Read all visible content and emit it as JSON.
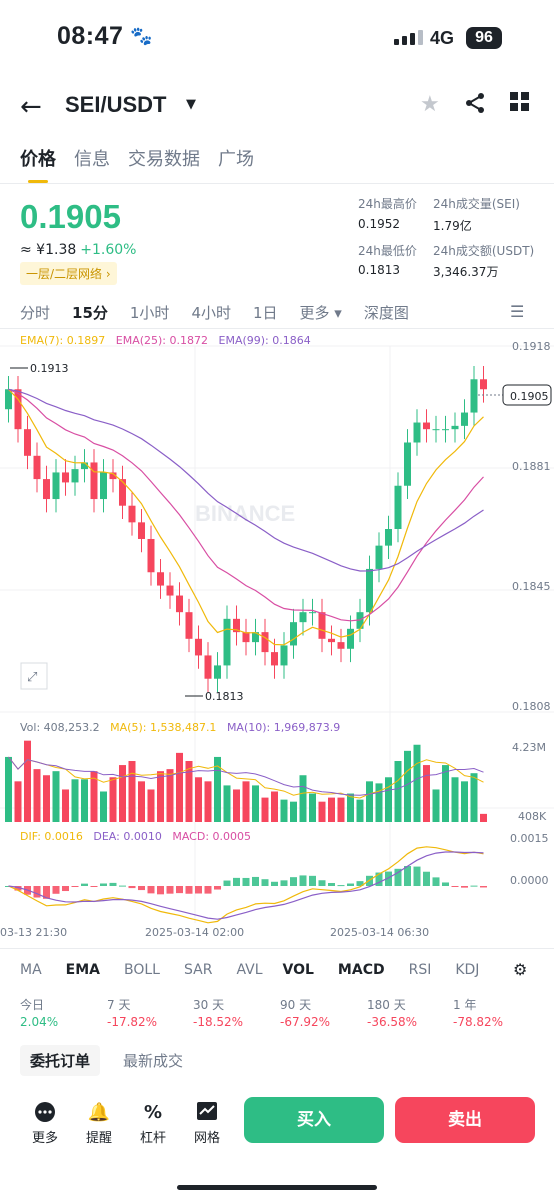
{
  "status_bar": {
    "time": "08:47",
    "network": "4G",
    "battery": "96"
  },
  "header": {
    "pair": "SEI/USDT"
  },
  "tabs": [
    "价格",
    "信息",
    "交易数据",
    "广场"
  ],
  "ticker": {
    "price": "0.1905",
    "fiat": "≈ ¥1.38",
    "change": "+1.60%",
    "grid_badge": "一层/二层网络 ›",
    "high_label": "24h最高价",
    "high": "0.1952",
    "vol_label": "24h成交量(SEI)",
    "vol": "1.79亿",
    "low_label": "24h最低价",
    "low": "0.1813",
    "amt_label": "24h成交额(USDT)",
    "amt": "3,346.37万"
  },
  "intervals": [
    "分时",
    "15分",
    "1小时",
    "4小时",
    "1日",
    "更多 ▾",
    "深度图"
  ],
  "chart_overlay": {
    "ema7": "EMA(7): 0.1897",
    "ema25": "EMA(25): 0.1872",
    "ema99": "EMA(99): 0.1864",
    "axis": [
      "0.1918",
      "0.1881",
      "0.1845",
      "0.1808"
    ],
    "last_price_tag": "0.1905",
    "hi_mark": "0.1913",
    "lo_mark": "0.1813",
    "watermark": "BINANCE",
    "vol": "Vol: 408,253.2",
    "ma5": "MA(5): 1,538,487.1",
    "ma10": "MA(10): 1,969,873.9",
    "vol_axis": [
      "4.23M",
      "408K"
    ],
    "dif": "DIF: 0.0016",
    "dea": "DEA: 0.0010",
    "macd": "MACD: 0.0005",
    "macd_axis": [
      "0.0015",
      "0.0000"
    ],
    "times": [
      "03-13 21:30",
      "2025-03-14 02:00",
      "2025-03-14 06:30"
    ]
  },
  "indicators": [
    "MA",
    "EMA",
    "BOLL",
    "SAR",
    "AVL",
    "VOL",
    "MACD",
    "RSI",
    "KDJ"
  ],
  "performance": [
    {
      "label": "今日",
      "value": "2.04%",
      "color": "#2ebd85"
    },
    {
      "label": "7 天",
      "value": "-17.82%",
      "color": "#f6465d"
    },
    {
      "label": "30 天",
      "value": "-18.52%",
      "color": "#f6465d"
    },
    {
      "label": "90 天",
      "value": "-67.92%",
      "color": "#f6465d"
    },
    {
      "label": "180 天",
      "value": "-36.58%",
      "color": "#f6465d"
    },
    {
      "label": "1 年",
      "value": "-78.82%",
      "color": "#f6465d"
    }
  ],
  "order_tabs": [
    "委托订单",
    "最新成交"
  ],
  "bottom": {
    "more": "更多",
    "alert": "提醒",
    "leverage": "杠杆",
    "grid": "网格",
    "buy": "买入",
    "sell": "卖出"
  },
  "colors": {
    "up": "#2ebd85",
    "down": "#f6465d",
    "accent": "#f0b90b"
  }
}
